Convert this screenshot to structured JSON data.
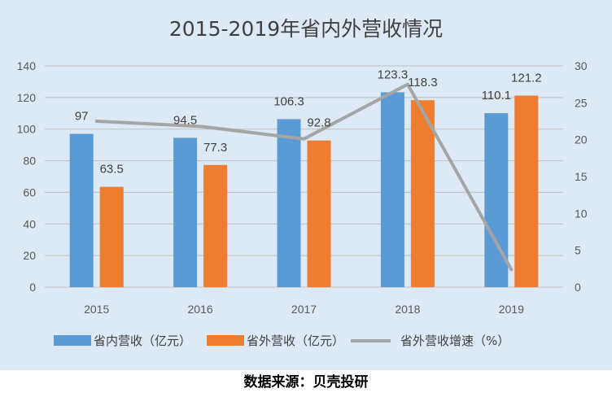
{
  "chart_data": {
    "type": "bar",
    "title": "2015-2019年省内外营收情况",
    "categories": [
      "2015",
      "2016",
      "2017",
      "2018",
      "2019"
    ],
    "series": [
      {
        "name": "省内营收（亿元）",
        "kind": "bar",
        "axis": "left",
        "color": "#5b9bd5",
        "values": [
          97,
          94.5,
          106.3,
          123.3,
          110.1
        ]
      },
      {
        "name": "省外营收（亿元）",
        "kind": "bar",
        "axis": "left",
        "color": "#ed7d31",
        "values": [
          63.5,
          77.3,
          92.8,
          118.3,
          121.2
        ]
      },
      {
        "name": "省外营收增速（%）",
        "kind": "line",
        "axis": "right",
        "color": "#a5a5a5",
        "values": [
          22.5,
          21.8,
          20.1,
          27.5,
          2.4
        ]
      }
    ],
    "y_left": {
      "min": 0,
      "max": 140,
      "step": 20,
      "ticks": [
        "0",
        "20",
        "40",
        "60",
        "80",
        "100",
        "120",
        "140"
      ]
    },
    "y_right": {
      "min": 0,
      "max": 30,
      "step": 5,
      "ticks": [
        "0",
        "5",
        "10",
        "15",
        "20",
        "25",
        "30"
      ]
    },
    "legend_position": "bottom",
    "grid": true
  },
  "source": "数据来源：贝壳投研"
}
